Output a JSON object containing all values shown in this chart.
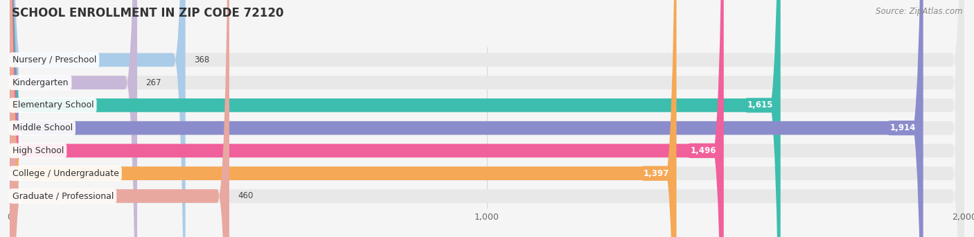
{
  "title": "SCHOOL ENROLLMENT IN ZIP CODE 72120",
  "source": "Source: ZipAtlas.com",
  "categories": [
    "Nursery / Preschool",
    "Kindergarten",
    "Elementary School",
    "Middle School",
    "High School",
    "College / Undergraduate",
    "Graduate / Professional"
  ],
  "values": [
    368,
    267,
    1615,
    1914,
    1496,
    1397,
    460
  ],
  "bar_colors": [
    "#aacce8",
    "#c8b8d8",
    "#3dbdae",
    "#8b8ccc",
    "#f0609a",
    "#f5a855",
    "#e8a8a0"
  ],
  "xlim_max": 2000,
  "xticks": [
    0,
    1000,
    2000
  ],
  "bg_color": "#f5f5f5",
  "row_bg_color": "#eaeaea",
  "title_fontsize": 12,
  "source_fontsize": 8.5,
  "label_fontsize": 9,
  "value_fontsize": 8.5
}
